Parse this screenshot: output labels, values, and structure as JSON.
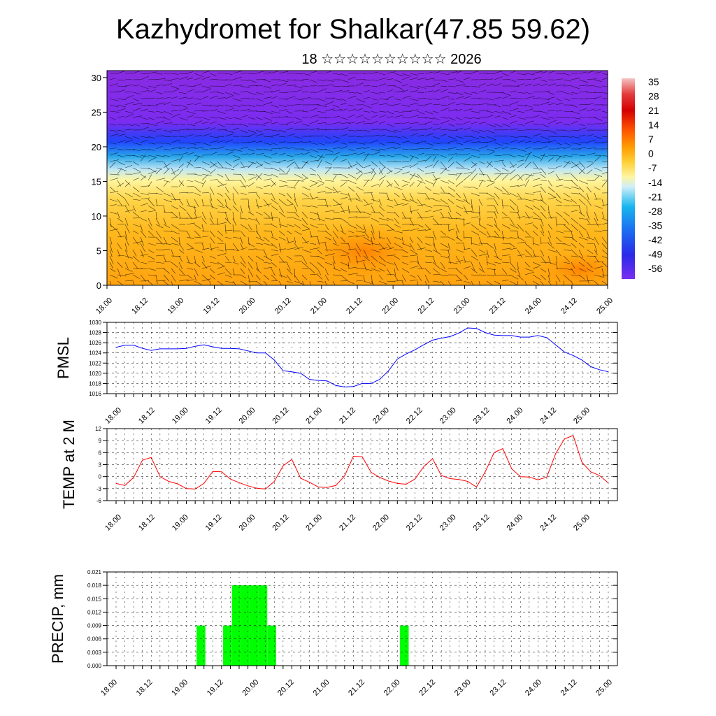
{
  "title": "Kazhydromet for Shalkar(47.85 59.62)",
  "subtitle": "18 ☆☆☆☆☆☆☆☆☆☆ 2026",
  "time_labels": [
    "18.00",
    "18.12",
    "19.00",
    "19.12",
    "20.00",
    "20.12",
    "21.00",
    "21.12",
    "22.00",
    "22.12",
    "23.00",
    "23.12",
    "24.00",
    "24.12",
    "25.00"
  ],
  "colors": {
    "pmsl_line": "#0000ff",
    "temp_line": "#ff0000",
    "precip_bar": "#00ff00"
  },
  "chart_data": [
    {
      "type": "heatmap",
      "description": "Temperature cross-section with wind barbs",
      "title": "",
      "y_ticks": [
        "0",
        "5",
        "10",
        "15",
        "20",
        "25",
        "30"
      ],
      "ylim": [
        0,
        31
      ],
      "colorbar_labels": [
        "35",
        "28",
        "21",
        "14",
        "7",
        "0",
        "-7",
        "-14",
        "-21",
        "-28",
        "-35",
        "-42",
        "-49",
        "-56"
      ],
      "layers": [
        {
          "from": 0,
          "to": 15,
          "range": "warm (orange-yellow)"
        },
        {
          "from": 15,
          "to": 17,
          "range": "cold (light blue)"
        },
        {
          "from": 17,
          "to": 22,
          "range": "cold (blue)"
        },
        {
          "from": 22,
          "to": 31,
          "range": "very cold (purple)"
        }
      ]
    },
    {
      "type": "line",
      "ylabel": "PMSL",
      "ylim": [
        1016,
        1030
      ],
      "y_ticks": [
        "1016",
        "1018",
        "1020",
        "1022",
        "1024",
        "1026",
        "1028",
        "1030"
      ],
      "values": [
        1025.1,
        1025.5,
        1025.5,
        1024.9,
        1024.5,
        1024.8,
        1024.8,
        1024.8,
        1024.9,
        1025.3,
        1025.6,
        1025.2,
        1024.9,
        1024.9,
        1024.8,
        1024.4,
        1024.0,
        1024.0,
        1022.6,
        1020.5,
        1020.3,
        1020.0,
        1018.8,
        1018.6,
        1018.5,
        1017.6,
        1017.3,
        1017.4,
        1018.0,
        1018.0,
        1018.8,
        1020.5,
        1022.8,
        1023.8,
        1024.6,
        1025.6,
        1026.5,
        1026.9,
        1027.2,
        1027.9,
        1028.9,
        1028.8,
        1028.0,
        1027.5,
        1027.4,
        1027.4,
        1027.1,
        1027.1,
        1027.4,
        1027.0,
        1025.6,
        1024.2,
        1023.5,
        1022.6,
        1021.3,
        1020.7,
        1020.3
      ]
    },
    {
      "type": "line",
      "ylabel": "TEMP at 2 M",
      "ylim": [
        -6,
        12
      ],
      "y_ticks": [
        "-6",
        "-3",
        "0",
        "3",
        "6",
        "9",
        "12"
      ],
      "values": [
        -1.7,
        -2.2,
        -0.2,
        4.1,
        4.8,
        0.0,
        -1.2,
        -1.8,
        -3.0,
        -3.1,
        -1.7,
        1.3,
        1.2,
        -0.6,
        -1.5,
        -2.3,
        -2.9,
        -3.1,
        -1.2,
        2.7,
        4.3,
        -0.4,
        -1.4,
        -2.6,
        -2.7,
        -2.2,
        0.2,
        5.1,
        5.0,
        1.1,
        -0.2,
        -1.1,
        -1.7,
        -1.9,
        -0.6,
        2.5,
        4.5,
        0.3,
        -0.5,
        -0.7,
        -1.2,
        -2.6,
        1.2,
        6.0,
        7.0,
        2.0,
        0.0,
        -0.1,
        -0.8,
        -0.1,
        5.7,
        9.4,
        10.3,
        3.6,
        1.2,
        0.3,
        -1.6
      ]
    },
    {
      "type": "bar",
      "ylabel": "PRECIP, mm",
      "ylim": [
        0,
        0.021
      ],
      "y_ticks": [
        "0.000",
        "0.003",
        "0.006",
        "0.009",
        "0.012",
        "0.015",
        "0.018",
        "0.021"
      ],
      "values": [
        0,
        0,
        0,
        0,
        0,
        0,
        0,
        0,
        0,
        0,
        0.009,
        0,
        0,
        0.009,
        0.018,
        0.018,
        0.018,
        0.018,
        0.009,
        0,
        0,
        0,
        0,
        0,
        0,
        0,
        0,
        0,
        0,
        0,
        0,
        0,
        0,
        0.009,
        0,
        0,
        0,
        0,
        0,
        0,
        0,
        0,
        0,
        0,
        0,
        0,
        0,
        0,
        0,
        0,
        0,
        0,
        0,
        0,
        0,
        0,
        0
      ]
    }
  ]
}
